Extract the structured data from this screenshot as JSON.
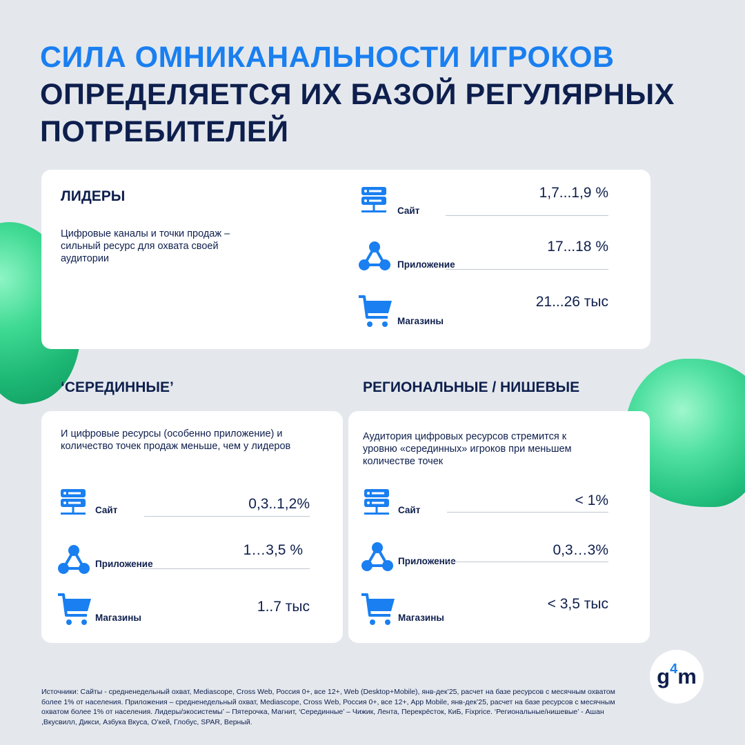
{
  "title": {
    "line1": "СИЛА ОМНИКАНАЛЬНОСТИ ИГРОКОВ",
    "line2": "ОПРЕДЕЛЯЕТСЯ ИХ БАЗОЙ РЕГУЛЯРНЫХ",
    "line3": "ПОТРЕБИТЕЛЕЙ"
  },
  "colors": {
    "accent": "#1a7ff0",
    "navy": "#0e1f4d",
    "background": "#e4e8ed",
    "green": "#2ecf88"
  },
  "leaders": {
    "heading": "ЛИДЕРЫ",
    "description": "Цифровые каналы и точки продаж – сильный ресурс для охвата своей аудитории",
    "metrics": [
      {
        "icon": "server-icon",
        "label": "Сайт",
        "value": "1,7...1,9 %"
      },
      {
        "icon": "network-icon",
        "label": "Приложение",
        "value": "17...18 %"
      },
      {
        "icon": "cart-icon",
        "label": "Магазины",
        "value": "21...26 тыс"
      }
    ]
  },
  "middle": {
    "heading": "‘СЕРЕДИННЫЕ’",
    "description": "И цифровые ресурсы (особенно приложение) и количество точек продаж меньше, чем у лидеров",
    "metrics": [
      {
        "icon": "server-icon",
        "label": "Сайт",
        "value": "0,3..1,2%"
      },
      {
        "icon": "network-icon",
        "label": "Приложение",
        "value": "1…3,5 %"
      },
      {
        "icon": "cart-icon",
        "label": "Магазины",
        "value": "1..7 тыс"
      }
    ]
  },
  "regional": {
    "heading": "РЕГИОНАЛЬНЫЕ / НИШЕВЫЕ",
    "description": "Аудитория цифровых ресурсов стремится к уровню «серединных» игроков при меньшем количестве точек",
    "metrics": [
      {
        "icon": "server-icon",
        "label": "Сайт",
        "value": "< 1%"
      },
      {
        "icon": "network-icon",
        "label": "Приложение",
        "value": "0,3…3%"
      },
      {
        "icon": "cart-icon",
        "label": "Магазины",
        "value": "< 3,5 тыс"
      }
    ]
  },
  "logo": {
    "g": "g",
    "four": "4",
    "m": "m"
  },
  "sources": "Источники: Сайты  - средненедельный охват, Mediascope, Cross Web, Россия 0+, все 12+, Web (Desktop+Mobile), янв-дек’25, расчет на базе ресурсов с месячным охватом более 1% от населения. Приложения – средненедельный охват, Mediascope, Cross Web, Россия 0+, все 12+, App Mobile, янв-дек’25, расчет на базе ресурсов с месячным охватом более 1% от населения. Лидеры/экосистемы’ – Пятерочка, Магнит, ‘Серединные’ – Чижик, Лента, Перекрёсток, КиБ, Fixprice. ‘Региональные/нишевые’ - Ашан ,Вкусвилл, Дикси, Азбука Вкуса, О’кей, Глобус, SPAR, Верный."
}
